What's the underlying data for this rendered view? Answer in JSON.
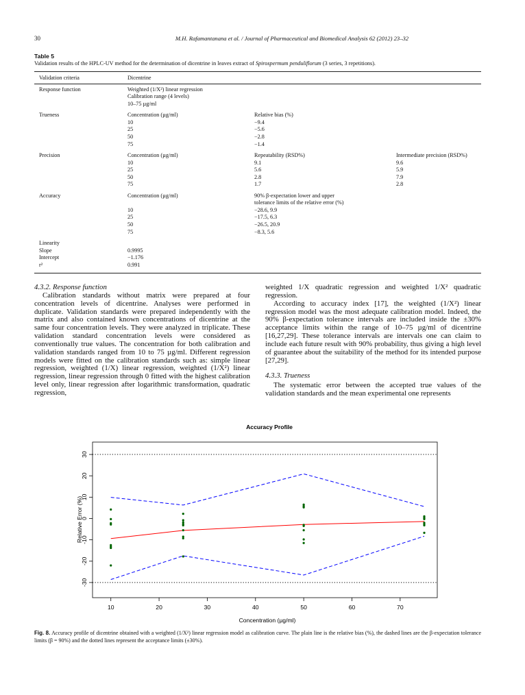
{
  "header": {
    "page_number": "30",
    "running_title": "M.H. Rafamantanana et al. / Journal of Pharmaceutical and Biomedical Analysis 62 (2012) 23–32"
  },
  "table": {
    "label": "Table 5",
    "caption": [
      "Validation results of the HPLC-UV method for the determination of dicentrine in leaves extract of ",
      "Spirospermum penduliflorum",
      " (3 series, 3 repetitions)."
    ],
    "header": [
      "Validation criteria",
      "Dicentrine"
    ],
    "rows": [
      [
        [
          "Response function"
        ],
        [
          "Weighted (1/X²) linear regression",
          "Calibration range (4 levels)",
          "10–75 µg/ml"
        ]
      ],
      [
        [
          "Trueness"
        ],
        [
          "Concentration (µg/ml)",
          "10",
          "25",
          "50",
          "75"
        ],
        [
          "Relative bias (%)",
          "−9.4",
          "−5.6",
          "−2.8",
          "−1.4"
        ]
      ],
      [
        [
          "Precision"
        ],
        [
          "Concentration (µg/ml)",
          "10",
          "25",
          "50",
          "75"
        ],
        [
          "Repeatability (RSD%)",
          "9.1",
          "5.6",
          "2.8",
          "1.7"
        ],
        [
          "Intermediate precision (RSD%)",
          "9.6",
          "5.9",
          "7.9",
          "2.8"
        ]
      ],
      [
        [
          "Accuracy"
        ],
        [
          "Concentration (µg/ml)",
          null,
          "10",
          "25",
          "50",
          "75"
        ],
        [
          "90% β-expectation lower and upper",
          "tolerance limits of the relative error (%)",
          "−28.6, 9.9",
          "−17.5, 6.3",
          "−26.5, 20.9",
          "−8.3, 5.6"
        ]
      ],
      [
        [
          "Linearity",
          "Slope",
          "Intercept",
          "r²"
        ],
        [
          null,
          "0.9995",
          "−1.176",
          "0.991"
        ]
      ]
    ]
  },
  "body": {
    "columns": [
      [
        {
          "heading": "4.3.2. Response function"
        },
        {
          "paragraph": "Calibration standards without matrix were prepared at four concentration levels of dicentrine. Analyses were performed in duplicate. Validation standards were prepared independently with the matrix and also contained known concentrations of dicentrine at the same four concentration levels. They were analyzed in triplicate. These validation standard concentration levels were considered as conventionally true values. The concentration for both calibration and validation standards ranged from 10 to 75 µg/ml. Different regression models were fitted on the calibration standards such as: simple linear regression, weighted (1/X) linear regression, weighted (1/X²) linear regression, linear regression through 0 fitted with the highest calibration level only, linear regression after logarithmic transformation, quadratic regression,"
        }
      ],
      [
        {
          "continuation": "weighted 1/X quadratic regression and weighted 1/X² quadratic regression."
        },
        {
          "paragraph": "According to accuracy index [17], the weighted (1/X²) linear regression model was the most adequate calibration model. Indeed, the 90% β-expectation tolerance intervals are included inside the ±30% acceptance limits within the range of 10–75 µg/ml of dicentrine [16,27,29]. These tolerance intervals are intervals one can claim to include each future result with 90% probability, thus giving a high level of guarantee about the suitability of the method for its intended purpose [27,29]."
        },
        {
          "heading": "4.3.3. Trueness"
        },
        {
          "paragraph": "The systematic error between the accepted true values of the validation standards and the mean experimental one represents"
        }
      ]
    ]
  },
  "chart_data": {
    "type": "line",
    "title": "Accuracy Profile",
    "x_label": "Concentration (µg/ml)",
    "y_label": "Relative Error (%)",
    "x": [
      10,
      25,
      50,
      75
    ],
    "series": [
      {
        "color": "#ff0000",
        "style": "solid",
        "values": [
          -9.4,
          -5.6,
          -2.8,
          -1.4
        ]
      },
      {
        "color": "#0000ff",
        "style": "dashed",
        "values": [
          9.9,
          6.3,
          20.9,
          5.6
        ]
      },
      {
        "color": "#0000ff",
        "style": "dashed",
        "values": [
          -28.6,
          -17.5,
          -26.5,
          -8.3
        ]
      }
    ],
    "hlines": {
      "color": "#000000",
      "style": "dotted",
      "values": [
        30,
        -30
      ]
    },
    "points": {
      "color": "#006400",
      "x": [
        10,
        10,
        10,
        10,
        10,
        10,
        10,
        10,
        25,
        25,
        25,
        25,
        25,
        25,
        25,
        25,
        25,
        50,
        50,
        50,
        50,
        50,
        50,
        50,
        50,
        75,
        75,
        75,
        75,
        75,
        75,
        75,
        75
      ],
      "values": [
        4.2,
        -0.3,
        -2.2,
        -2.8,
        -12.5,
        -13.2,
        -13.8,
        -22.0,
        2.2,
        -0.8,
        -1.8,
        -2.6,
        -3.2,
        -5.5,
        -8.5,
        -9.3,
        -17.8,
        6.5,
        5.8,
        5.2,
        -3.0,
        -3.5,
        -5.5,
        -9.8,
        -11.5,
        1.0,
        0.5,
        0.0,
        -0.3,
        -2.0,
        -2.6,
        -3.2,
        -6.7
      ]
    },
    "xlim": [
      6.2,
      77.7
    ],
    "ylim": [
      -37.1,
      35.8
    ],
    "xticks": [
      10,
      20,
      30,
      40,
      50,
      60,
      70
    ],
    "yticks": [
      -30,
      -20,
      -10,
      0,
      10,
      20,
      30
    ]
  },
  "figure_caption": {
    "label": "Fig. 8.",
    "text": "Accuracy profile of dicentrine obtained with a weighted (1/X²) linear regression model as calibration curve. The plain line is the relative bias (%), the dashed lines are the β-expectation tolerance limits (β = 90%) and the dotted lines represent the acceptance limits (±30%)."
  }
}
